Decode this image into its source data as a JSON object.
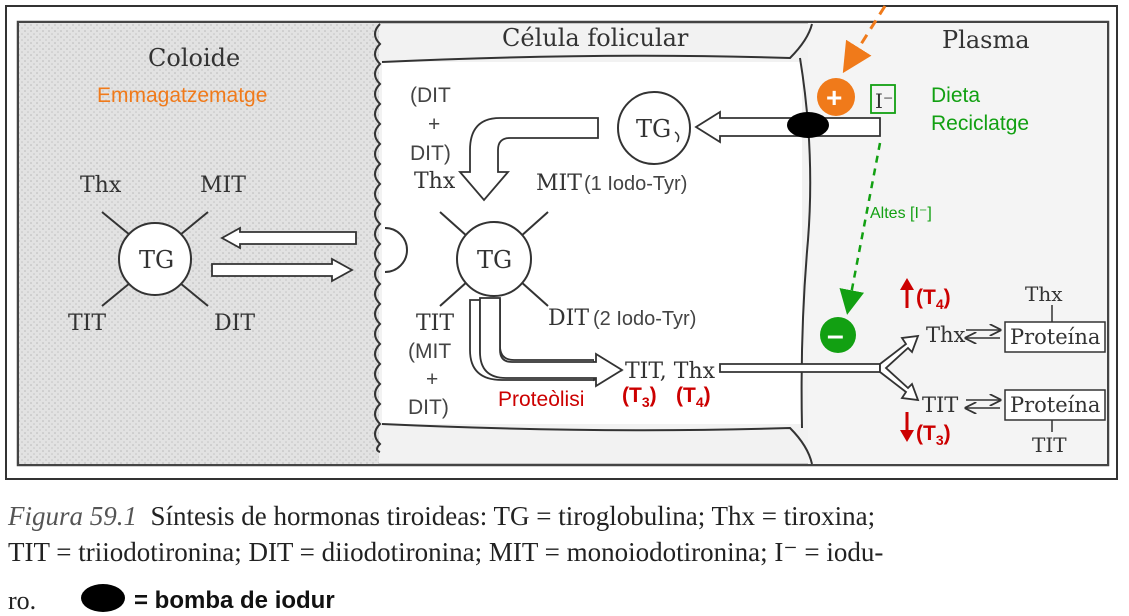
{
  "regions": {
    "coloid": "Coloide",
    "cell": "Célula folicular",
    "plasma": "Plasma"
  },
  "labels": {
    "storage": "Emmagatzematge",
    "dit_plus_dit": [
      "(DIT",
      "+",
      "DIT)"
    ],
    "thx_top": "Thx",
    "mit_1iodo_mit": "MIT",
    "mit_1iodo_text": "(1 Iodo-Tyr)",
    "tg_top": "TG",
    "iodide_box": "I⁻",
    "diet": "Dieta",
    "recycling": "Reciclatge",
    "high_iodide": "Altes [I⁻]",
    "left_thx": "Thx",
    "left_mit": "MIT",
    "left_tg": "TG",
    "left_tit": "TIT",
    "left_dit": "DIT",
    "center_tg": "TG",
    "dit_2iodo_dit": "DIT",
    "dit_2iodo_text": "(2 Iodo-Tyr)",
    "tit_center": "TIT",
    "mit_plus_dit": [
      "(MIT",
      "+",
      "DIT)"
    ],
    "proteolysis": "Proteòlisi",
    "tit_thx_out": "TIT, Thx",
    "t3_under": "(T",
    "t4_under": "(T",
    "up_t4": "(T",
    "down_t3": "(T",
    "thx_plasma_top": "Thx",
    "thx_plasma": "Thx",
    "protein1": "Proteína",
    "tit_plasma": "TIT",
    "protein2": "Proteína",
    "tit_plasma_bottom": "TIT",
    "plus_sign": "+",
    "minus_sign": "–",
    "sub3": "3",
    "sub4": "4",
    "close_paren": ")"
  },
  "caption": {
    "figure": "Figura 59.1",
    "line1": "Síntesis de hormonas tiroideas: TG = tiroglobulina; Thx = tiroxina;",
    "line2": "TIT = triiodotironina; DIT = diiodotironina; MIT = monoiodotironina; I⁻ = iodu-",
    "line3": "ro.",
    "pump_legend": "= bomba de iodur"
  },
  "colors": {
    "orange": "#f07a1a",
    "green": "#12a012",
    "red": "#cc0000",
    "ink": "#333333",
    "coloid_bg": "#dcdcdc"
  }
}
